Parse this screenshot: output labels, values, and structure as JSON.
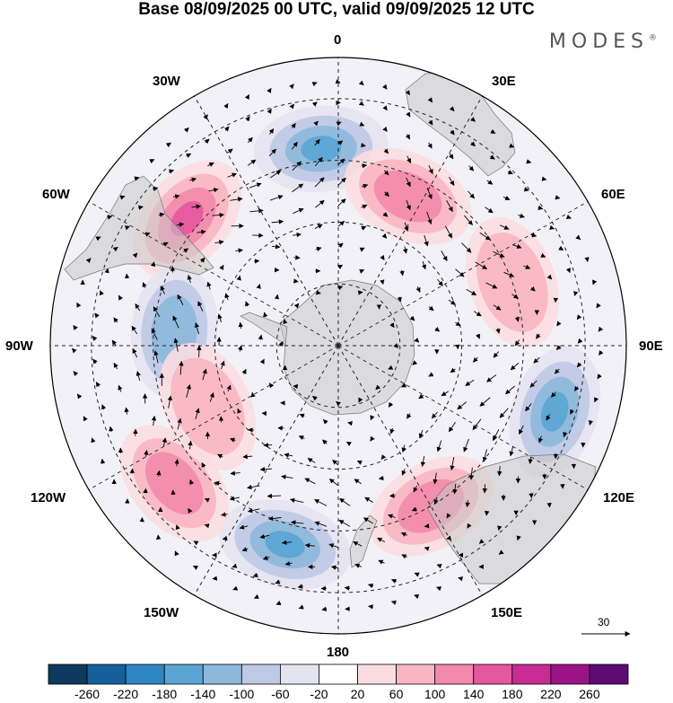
{
  "title": "Base 08/09/2025 00 UTC, valid 09/09/2025 12 UTC",
  "brand": "MODES",
  "brand_mark": "®",
  "longitude_labels": {
    "top": "0",
    "bottom": "180",
    "left": "90W",
    "right": "90E",
    "top_left": "30W",
    "top_right": "30E",
    "upper_left": "60W",
    "upper_right": "60E",
    "lower_left": "120W",
    "lower_right": "120E",
    "bottom_left": "150W",
    "bottom_right": "150E"
  },
  "vector_reference": {
    "label": "30",
    "magnitude": 30
  },
  "colorbar": {
    "colors": [
      "#0d3a5e",
      "#15609a",
      "#2f86c2",
      "#5aa5d4",
      "#8db8dc",
      "#bec9e6",
      "#e4e3f0",
      "#ffffff",
      "#fbdde0",
      "#f8b6c2",
      "#f389ac",
      "#e5579f",
      "#c82b93",
      "#9a1488",
      "#5e0b74"
    ],
    "tick_labels": [
      "-260",
      "-220",
      "-180",
      "-140",
      "-100",
      "-60",
      "-20",
      "20",
      "60",
      "100",
      "140",
      "180",
      "220",
      "260"
    ]
  },
  "anomaly_features": [
    {
      "sign": "negative",
      "level": 4,
      "lon": -5,
      "lat": -42
    },
    {
      "sign": "positive",
      "level": 4,
      "lon": -50,
      "lat": -42
    },
    {
      "sign": "positive",
      "level": 3,
      "lon": 25,
      "lat": -50
    },
    {
      "sign": "negative",
      "level": 3,
      "lon": -85,
      "lat": -50
    },
    {
      "sign": "positive",
      "level": 2,
      "lon": 70,
      "lat": -45
    },
    {
      "sign": "negative",
      "level": 4,
      "lon": 107,
      "lat": -35
    },
    {
      "sign": "positive",
      "level": 3,
      "lon": 150,
      "lat": -45
    },
    {
      "sign": "negative",
      "level": 4,
      "lon": -165,
      "lat": -40
    },
    {
      "sign": "positive",
      "level": 3,
      "lon": -130,
      "lat": -38
    },
    {
      "sign": "positive",
      "level": 2,
      "lon": -115,
      "lat": -55
    }
  ]
}
